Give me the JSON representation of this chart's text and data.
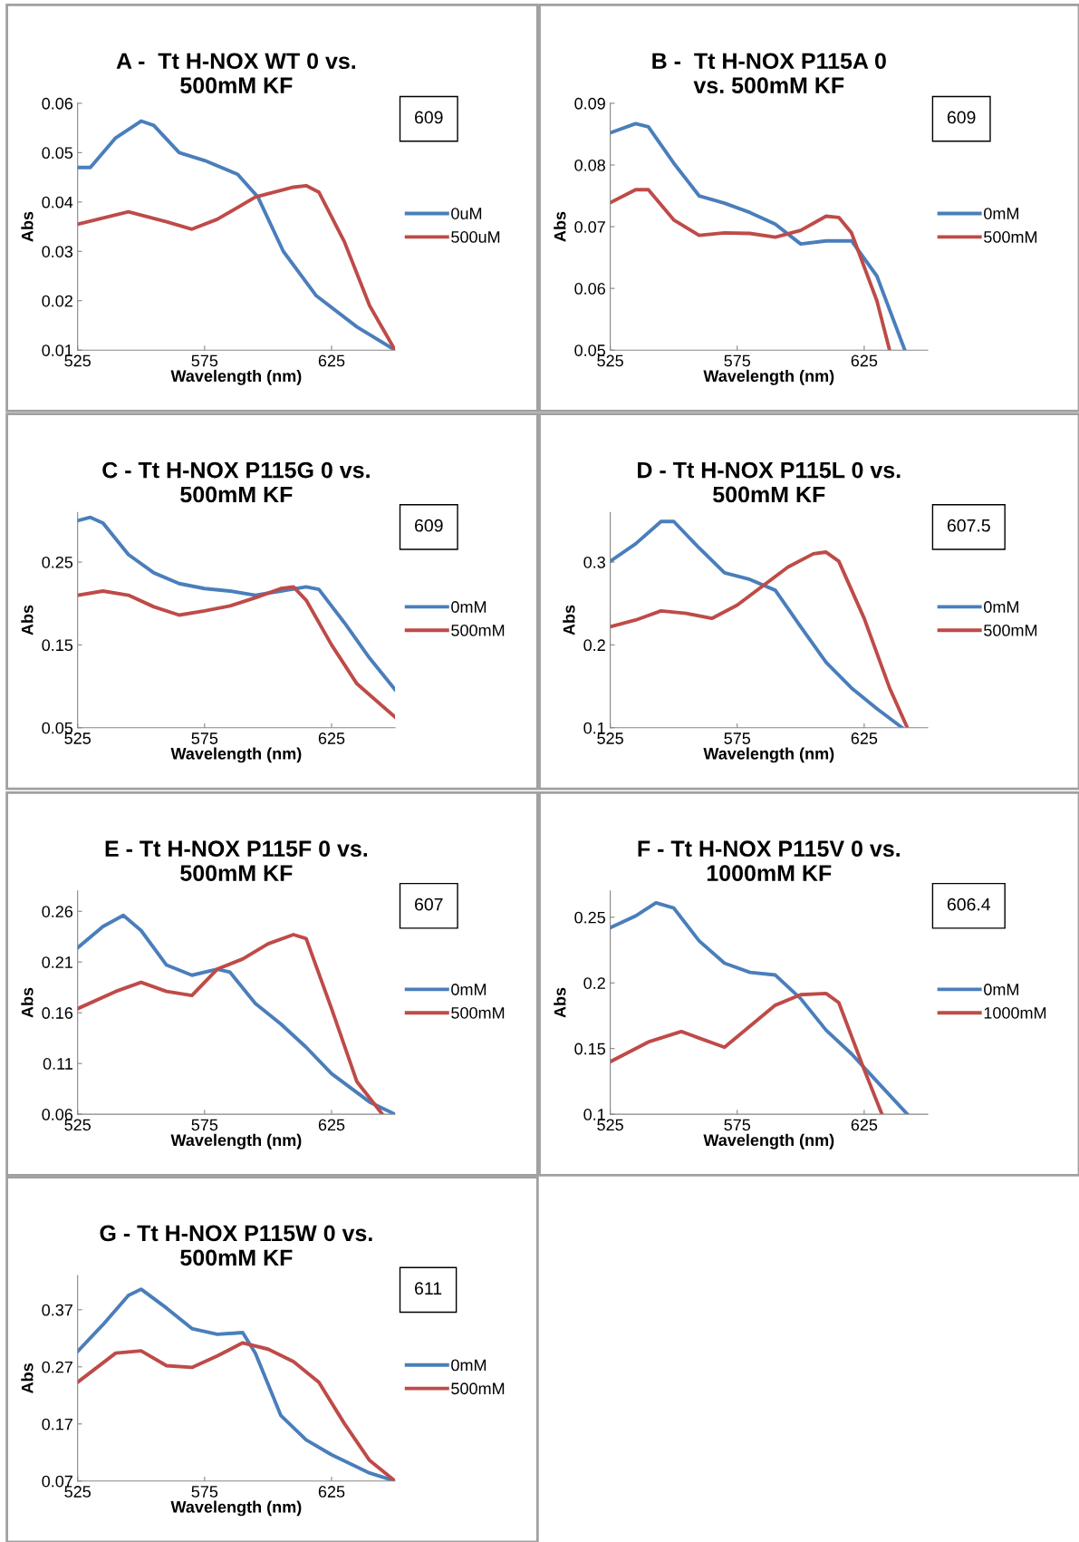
{
  "chart_data": [
    {
      "type": "line",
      "title": "A -  Tt H-NOX WT 0 vs. 500mM KF",
      "xlabel": "Wavelength (nm)",
      "ylabel": "Abs",
      "xlim": [
        525,
        650
      ],
      "xticks": [
        525,
        575,
        625
      ],
      "ylim": [
        0.01,
        0.06
      ],
      "yticks": [
        0.01,
        0.02,
        0.03,
        0.04,
        0.05,
        0.06
      ],
      "legend": "right",
      "annotations": [
        "609"
      ],
      "series": [
        {
          "name": "0uM",
          "color": "#4a7ebb",
          "x": [
            525,
            530,
            540,
            550,
            555,
            565,
            575,
            588,
            596,
            606,
            619,
            635,
            650
          ],
          "values": [
            0.047,
            0.047,
            0.053,
            0.0564,
            0.0555,
            0.05,
            0.0484,
            0.0456,
            0.041,
            0.03,
            0.021,
            0.0147,
            0.01
          ]
        },
        {
          "name": "500uM",
          "color": "#be4b48",
          "x": [
            525,
            545,
            560,
            570,
            580,
            595,
            610,
            615,
            620,
            630,
            640,
            650
          ],
          "values": [
            0.0355,
            0.038,
            0.036,
            0.0345,
            0.0365,
            0.041,
            0.043,
            0.0433,
            0.042,
            0.032,
            0.019,
            0.01
          ]
        }
      ]
    },
    {
      "type": "line",
      "title": "B -  Tt H-NOX P115A 0 vs. 500mM KF",
      "xlabel": "Wavelength (nm)",
      "ylabel": "Abs",
      "xlim": [
        525,
        650
      ],
      "xticks": [
        525,
        575,
        625
      ],
      "ylim": [
        0.05,
        0.09
      ],
      "yticks": [
        0.05,
        0.06,
        0.07,
        0.08,
        0.09
      ],
      "legend": "right",
      "annotations": [
        "609"
      ],
      "series": [
        {
          "name": "0mM",
          "color": "#4a7ebb",
          "x": [
            525,
            535,
            540,
            550,
            560,
            570,
            580,
            590,
            600,
            610,
            620,
            630,
            641
          ],
          "values": [
            0.0852,
            0.0867,
            0.0862,
            0.0803,
            0.075,
            0.0738,
            0.0723,
            0.0704,
            0.0672,
            0.0677,
            0.0677,
            0.062,
            0.05
          ]
        },
        {
          "name": "500mM",
          "color": "#be4b48",
          "x": [
            525,
            535,
            540,
            550,
            560,
            570,
            580,
            590,
            600,
            610,
            615,
            620,
            630,
            635
          ],
          "values": [
            0.0739,
            0.076,
            0.076,
            0.0711,
            0.0686,
            0.069,
            0.0689,
            0.0683,
            0.0694,
            0.0717,
            0.0715,
            0.069,
            0.058,
            0.05
          ]
        }
      ]
    },
    {
      "type": "line",
      "title": "C - Tt H-NOX P115G 0 vs. 500mM KF",
      "xlabel": "Wavelength (nm)",
      "ylabel": "Abs",
      "xlim": [
        525,
        650
      ],
      "xticks": [
        525,
        575,
        625
      ],
      "ylim": [
        0.05,
        0.31
      ],
      "yticks": [
        0.05,
        0.15,
        0.25
      ],
      "legend": "right",
      "annotations": [
        "609"
      ],
      "series": [
        {
          "name": "0mM",
          "color": "#4a7ebb",
          "x": [
            525,
            530,
            535,
            545,
            555,
            565,
            575,
            585,
            595,
            605,
            615,
            620,
            630,
            640,
            650
          ],
          "values": [
            0.3,
            0.304,
            0.297,
            0.259,
            0.237,
            0.224,
            0.218,
            0.215,
            0.21,
            0.215,
            0.22,
            0.217,
            0.177,
            0.134,
            0.096
          ]
        },
        {
          "name": "500mM",
          "color": "#be4b48",
          "x": [
            525,
            535,
            545,
            555,
            565,
            575,
            585,
            595,
            605,
            610,
            615,
            625,
            635,
            650
          ],
          "values": [
            0.21,
            0.215,
            0.21,
            0.196,
            0.186,
            0.191,
            0.197,
            0.207,
            0.218,
            0.22,
            0.204,
            0.15,
            0.103,
            0.063
          ]
        }
      ]
    },
    {
      "type": "line",
      "title": "D - Tt H-NOX P115L 0 vs. 500mM KF",
      "xlabel": "Wavelength (nm)",
      "ylabel": "Abs",
      "xlim": [
        525,
        650
      ],
      "xticks": [
        525,
        575,
        625
      ],
      "ylim": [
        0.1,
        0.36
      ],
      "yticks": [
        0.1,
        0.2,
        0.3
      ],
      "legend": "right",
      "annotations": [
        "607.5"
      ],
      "series": [
        {
          "name": "0mM",
          "color": "#4a7ebb",
          "x": [
            525,
            535,
            545,
            550,
            560,
            570,
            580,
            590,
            600,
            610,
            620,
            630,
            640
          ],
          "values": [
            0.301,
            0.322,
            0.349,
            0.349,
            0.317,
            0.287,
            0.279,
            0.266,
            0.222,
            0.179,
            0.148,
            0.123,
            0.1
          ]
        },
        {
          "name": "500mM",
          "color": "#be4b48",
          "x": [
            525,
            535,
            545,
            555,
            565,
            575,
            585,
            595,
            605,
            610,
            615,
            625,
            635,
            642
          ],
          "values": [
            0.222,
            0.23,
            0.241,
            0.238,
            0.232,
            0.248,
            0.271,
            0.294,
            0.31,
            0.312,
            0.301,
            0.232,
            0.148,
            0.1
          ]
        }
      ]
    },
    {
      "type": "line",
      "title": "E - Tt H-NOX P115F 0 vs. 500mM KF",
      "xlabel": "Wavelength (nm)",
      "ylabel": "Abs",
      "xlim": [
        525,
        650
      ],
      "xticks": [
        525,
        575,
        625
      ],
      "ylim": [
        0.06,
        0.28
      ],
      "yticks": [
        0.06,
        0.11,
        0.16,
        0.21,
        0.26
      ],
      "legend": "right",
      "annotations": [
        "607"
      ],
      "series": [
        {
          "name": "0mM",
          "color": "#4a7ebb",
          "x": [
            525,
            535,
            543,
            550,
            560,
            570,
            580,
            585,
            595,
            605,
            615,
            625,
            640,
            650
          ],
          "values": [
            0.224,
            0.245,
            0.256,
            0.241,
            0.207,
            0.197,
            0.203,
            0.2,
            0.169,
            0.149,
            0.126,
            0.1,
            0.072,
            0.06
          ]
        },
        {
          "name": "500mM",
          "color": "#be4b48",
          "x": [
            525,
            540,
            550,
            560,
            570,
            580,
            590,
            600,
            610,
            615,
            625,
            635,
            645
          ],
          "values": [
            0.164,
            0.181,
            0.19,
            0.181,
            0.177,
            0.203,
            0.213,
            0.228,
            0.237,
            0.233,
            0.164,
            0.092,
            0.06
          ]
        }
      ]
    },
    {
      "type": "line",
      "title": "F - Tt H-NOX P115V 0 vs. 1000mM KF",
      "xlabel": "Wavelength (nm)",
      "ylabel": "Abs",
      "xlim": [
        525,
        650
      ],
      "xticks": [
        525,
        575,
        625
      ],
      "ylim": [
        0.1,
        0.27
      ],
      "yticks": [
        0.1,
        0.15,
        0.2,
        0.25
      ],
      "legend": "right",
      "annotations": [
        "606.4"
      ],
      "series": [
        {
          "name": "0mM",
          "color": "#4a7ebb",
          "x": [
            525,
            535,
            543,
            550,
            560,
            570,
            580,
            590,
            600,
            610,
            620,
            630,
            642
          ],
          "values": [
            0.242,
            0.251,
            0.261,
            0.257,
            0.232,
            0.215,
            0.208,
            0.206,
            0.188,
            0.164,
            0.146,
            0.125,
            0.1
          ]
        },
        {
          "name": "1000mM",
          "color": "#be4b48",
          "x": [
            525,
            540,
            553,
            560,
            570,
            580,
            590,
            600,
            610,
            615,
            625,
            632
          ],
          "values": [
            0.14,
            0.155,
            0.163,
            0.158,
            0.151,
            0.167,
            0.183,
            0.191,
            0.192,
            0.185,
            0.134,
            0.1
          ]
        }
      ]
    },
    {
      "type": "line",
      "title": "G - Tt H-NOX P115W 0 vs. 500mM KF",
      "xlabel": "Wavelength (nm)",
      "ylabel": "Abs",
      "xlim": [
        525,
        650
      ],
      "xticks": [
        525,
        575,
        625
      ],
      "ylim": [
        0.07,
        0.43
      ],
      "yticks": [
        0.07,
        0.17,
        0.27,
        0.37
      ],
      "legend": "right",
      "annotations": [
        "611"
      ],
      "series": [
        {
          "name": "0mM",
          "color": "#4a7ebb",
          "x": [
            525,
            535,
            545,
            550,
            560,
            570,
            580,
            590,
            595,
            605,
            615,
            625,
            640,
            650
          ],
          "values": [
            0.297,
            0.344,
            0.395,
            0.406,
            0.373,
            0.337,
            0.327,
            0.33,
            0.294,
            0.185,
            0.142,
            0.116,
            0.084,
            0.07
          ]
        },
        {
          "name": "500mM",
          "color": "#be4b48",
          "x": [
            525,
            540,
            550,
            560,
            570,
            580,
            590,
            600,
            610,
            620,
            630,
            640,
            650
          ],
          "values": [
            0.243,
            0.294,
            0.298,
            0.272,
            0.269,
            0.289,
            0.312,
            0.301,
            0.279,
            0.243,
            0.171,
            0.106,
            0.07
          ]
        }
      ]
    }
  ]
}
